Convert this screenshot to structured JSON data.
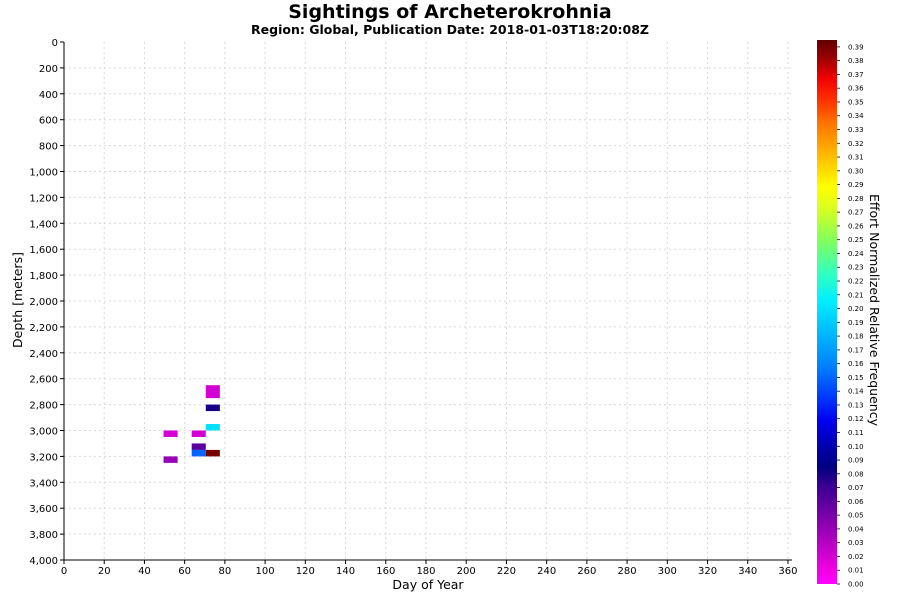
{
  "chart_data": {
    "type": "heatmap",
    "title": "Sightings of Archeterokrohnia",
    "subtitle": "Region: Global, Publication Date: 2018-01-03T18:20:08Z",
    "xlabel": "Day of Year",
    "ylabel": "Depth [meters]",
    "colorbar_label": "Effort Normalized Relative Frequency",
    "xlim": [
      0,
      362
    ],
    "ylim": [
      0,
      4000
    ],
    "y_inverted": true,
    "x_ticks": [
      0,
      20,
      40,
      60,
      80,
      100,
      120,
      140,
      160,
      180,
      200,
      220,
      240,
      260,
      280,
      300,
      320,
      340,
      360
    ],
    "y_ticks": [
      "0",
      "200",
      "400",
      "600",
      "800",
      "1,000",
      "1,200",
      "1,400",
      "1,600",
      "1,800",
      "2,000",
      "2,200",
      "2,400",
      "2,600",
      "2,800",
      "3,000",
      "3,200",
      "3,400",
      "3,600",
      "3,800",
      "4,000"
    ],
    "y_tick_values": [
      0,
      200,
      400,
      600,
      800,
      1000,
      1200,
      1400,
      1600,
      1800,
      2000,
      2200,
      2400,
      2600,
      2800,
      3000,
      3200,
      3400,
      3600,
      3800,
      4000
    ],
    "colorbar_ticks": [
      "0.00",
      "0.01",
      "0.02",
      "0.03",
      "0.04",
      "0.05",
      "0.06",
      "0.07",
      "0.08",
      "0.09",
      "0.10",
      "0.11",
      "0.12",
      "0.13",
      "0.14",
      "0.15",
      "0.16",
      "0.17",
      "0.18",
      "0.19",
      "0.20",
      "0.21",
      "0.22",
      "0.23",
      "0.24",
      "0.25",
      "0.26",
      "0.27",
      "0.28",
      "0.29",
      "0.30",
      "0.31",
      "0.32",
      "0.33",
      "0.34",
      "0.35",
      "0.36",
      "0.37",
      "0.38",
      "0.39"
    ],
    "colorbar_range": [
      0,
      0.395
    ],
    "cells": [
      {
        "x0": 70.5,
        "x1": 77.5,
        "y0": 2650,
        "y1": 2750,
        "value": 0.02
      },
      {
        "x0": 70.5,
        "x1": 77.5,
        "y0": 2800,
        "y1": 2850,
        "value": 0.08
      },
      {
        "x0": 70.5,
        "x1": 77.5,
        "y0": 2950,
        "y1": 3000,
        "value": 0.2
      },
      {
        "x0": 49.5,
        "x1": 56.5,
        "y0": 3000,
        "y1": 3050,
        "value": 0.02
      },
      {
        "x0": 63.5,
        "x1": 70.5,
        "y0": 3000,
        "y1": 3050,
        "value": 0.02
      },
      {
        "x0": 63.5,
        "x1": 70.5,
        "y0": 3100,
        "y1": 3150,
        "value": 0.06
      },
      {
        "x0": 63.5,
        "x1": 70.5,
        "y0": 3150,
        "y1": 3200,
        "value": 0.15
      },
      {
        "x0": 70.5,
        "x1": 77.5,
        "y0": 3150,
        "y1": 3200,
        "value": 0.39
      },
      {
        "x0": 49.5,
        "x1": 56.5,
        "y0": 3200,
        "y1": 3250,
        "value": 0.04
      }
    ],
    "grid": true,
    "legend": "colorbar-right",
    "colors": {
      "axis": "#000000",
      "grid": "#d9d9d9",
      "background": "#ffffff"
    }
  }
}
